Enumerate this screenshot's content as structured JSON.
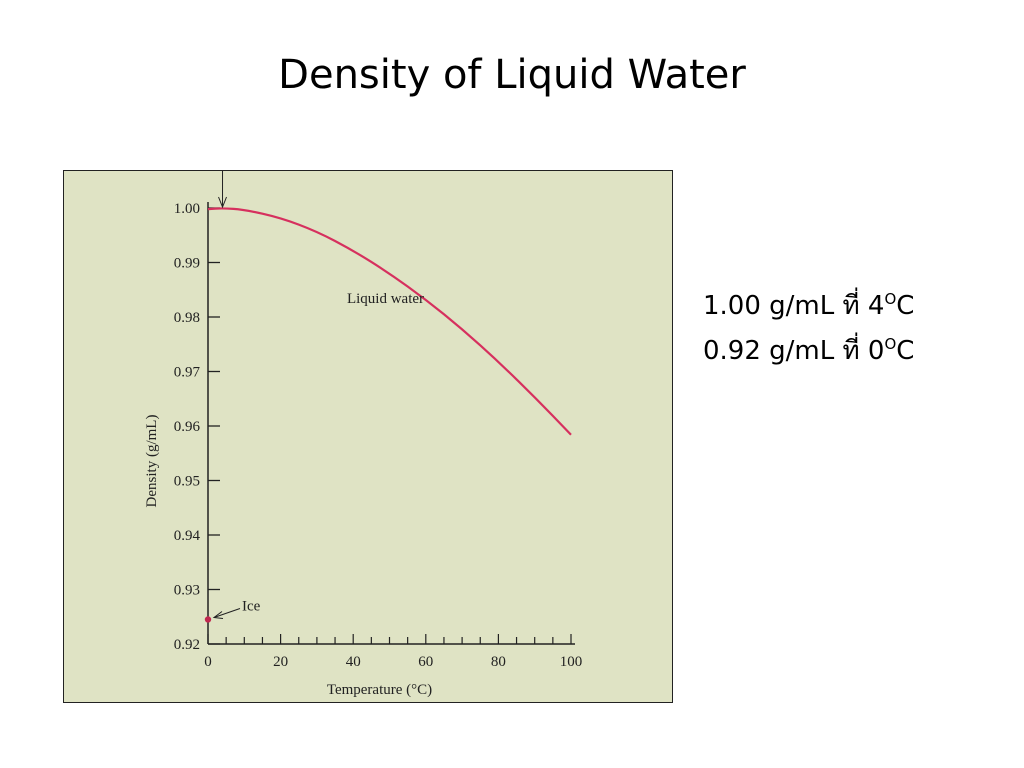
{
  "slide": {
    "title": "Density of Liquid Water"
  },
  "notes": [
    {
      "value": "1.00 g/mL ที่ 4",
      "sup": "O",
      "unit": "C"
    },
    {
      "value": "0.92 g/mL ที่ 0",
      "sup": "O",
      "unit": "C"
    }
  ],
  "chart_data": {
    "type": "line",
    "xlabel": "Temperature (°C)",
    "ylabel": "Density (g/mL)",
    "xlim": [
      0,
      100
    ],
    "ylim": [
      0.92,
      1.0
    ],
    "x_ticks": [
      0,
      20,
      40,
      60,
      80,
      100
    ],
    "y_ticks": [
      "0.92",
      "0.93",
      "0.94",
      "0.95",
      "0.96",
      "0.97",
      "0.98",
      "0.99",
      "1.00"
    ],
    "grid": false,
    "series": [
      {
        "name": "Liquid water",
        "color": "#d6305e",
        "x": [
          0,
          4,
          10,
          20,
          30,
          40,
          50,
          60,
          70,
          80,
          90,
          100
        ],
        "y": [
          0.9998,
          0.99997,
          0.9997,
          0.9982,
          0.9957,
          0.9922,
          0.988,
          0.9832,
          0.9778,
          0.9718,
          0.9653,
          0.9584
        ]
      }
    ],
    "points": [
      {
        "name": "Ice",
        "x": 0,
        "y": 0.9245,
        "color": "#c1284f"
      }
    ],
    "annotations": [
      {
        "text": "Ice"
      }
    ]
  }
}
